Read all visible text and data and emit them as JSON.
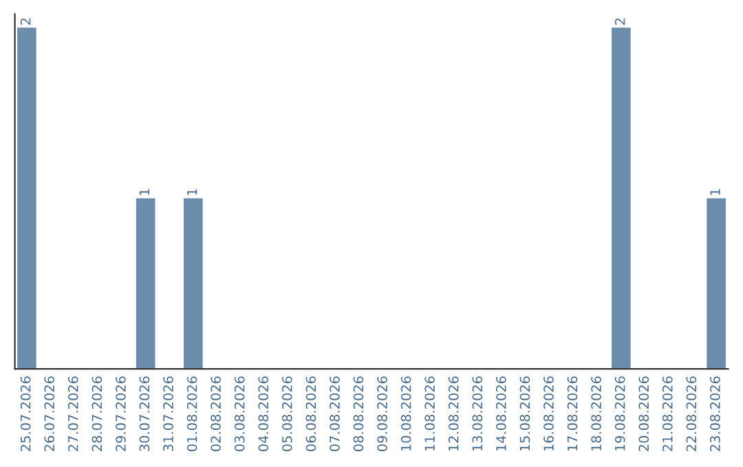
{
  "chart_data": {
    "type": "bar",
    "categories": [
      "25.07.2026",
      "26.07.2026",
      "27.07.2026",
      "28.07.2026",
      "29.07.2026",
      "30.07.2026",
      "31.07.2026",
      "01.08.2026",
      "02.08.2026",
      "03.08.2026",
      "04.08.2026",
      "05.08.2026",
      "06.08.2026",
      "07.08.2026",
      "08.08.2026",
      "09.08.2026",
      "10.08.2026",
      "11.08.2026",
      "12.08.2026",
      "13.08.2026",
      "14.08.2026",
      "15.08.2026",
      "16.08.2026",
      "17.08.2026",
      "18.08.2026",
      "19.08.2026",
      "20.08.2026",
      "21.08.2026",
      "22.08.2026",
      "23.08.2026"
    ],
    "values": [
      2,
      0,
      0,
      0,
      0,
      1,
      0,
      1,
      0,
      0,
      0,
      0,
      0,
      0,
      0,
      0,
      0,
      0,
      0,
      0,
      0,
      0,
      0,
      0,
      0,
      2,
      0,
      0,
      0,
      1
    ],
    "value_labels": [
      "2",
      null,
      null,
      null,
      null,
      "1",
      null,
      "1",
      null,
      null,
      null,
      null,
      null,
      null,
      null,
      null,
      null,
      null,
      null,
      null,
      null,
      null,
      null,
      null,
      null,
      "2",
      null,
      null,
      null,
      "1"
    ],
    "color": "#6b8cab",
    "grid": false,
    "legend": false
  }
}
